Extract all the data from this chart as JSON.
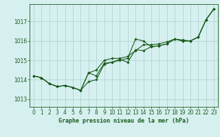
{
  "title": "Graphe pression niveau de la mer (hPa)",
  "bg_color": "#d6f0f0",
  "grid_color": "#b0d4d4",
  "line_color": "#1a5c1a",
  "marker_color": "#1a5c1a",
  "xlim": [
    -0.5,
    23.5
  ],
  "ylim": [
    1012.6,
    1017.9
  ],
  "yticks": [
    1013,
    1014,
    1015,
    1016,
    1017
  ],
  "xticks": [
    0,
    1,
    2,
    3,
    4,
    5,
    6,
    7,
    8,
    9,
    10,
    11,
    12,
    13,
    14,
    15,
    16,
    17,
    18,
    19,
    20,
    21,
    22,
    23
  ],
  "series": [
    [
      1014.2,
      1014.1,
      1013.8,
      1013.65,
      1013.7,
      1013.6,
      1013.45,
      1013.9,
      1014.0,
      1014.8,
      1014.9,
      1015.0,
      1015.1,
      1016.1,
      1016.0,
      1015.7,
      1015.75,
      1015.85,
      1016.1,
      1016.0,
      1016.0,
      1016.2,
      1017.1,
      1017.65
    ],
    [
      1014.2,
      1014.1,
      1013.8,
      1013.65,
      1013.7,
      1013.6,
      1013.45,
      1014.35,
      1014.2,
      1014.85,
      1014.9,
      1015.05,
      1014.9,
      1015.55,
      1015.5,
      1015.7,
      1015.75,
      1015.85,
      1016.1,
      1016.0,
      1016.0,
      1016.2,
      1017.1,
      1017.65
    ],
    [
      1014.2,
      1014.1,
      1013.8,
      1013.65,
      1013.7,
      1013.6,
      1013.45,
      1014.35,
      1014.5,
      1015.0,
      1015.1,
      1015.1,
      1015.2,
      1015.5,
      1015.8,
      1015.8,
      1015.85,
      1015.95,
      1016.1,
      1016.05,
      1016.0,
      1016.2,
      1017.1,
      1017.65
    ]
  ]
}
